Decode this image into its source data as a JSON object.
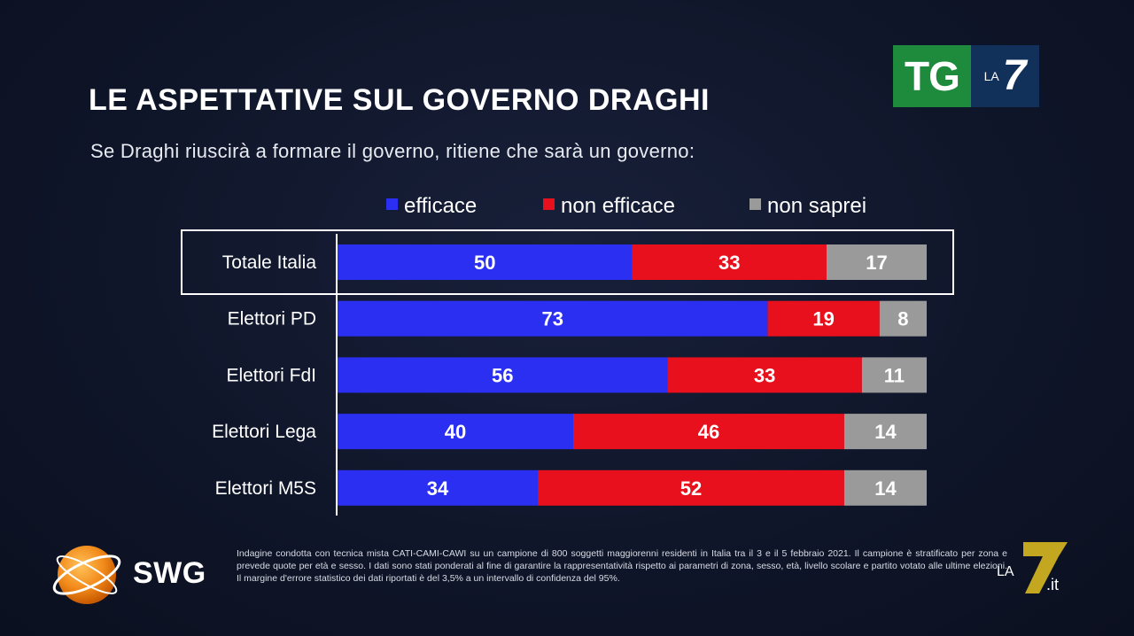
{
  "header": {
    "title": "LE ASPETTATIVE SUL GOVERNO DRAGHI",
    "subtitle": "Se Draghi riuscirà a formare il governo, ritiene che sarà un governo:"
  },
  "broadcaster_logo": {
    "tg": "TG",
    "la": "LA",
    "seven": "7"
  },
  "chart_data": {
    "type": "bar",
    "orientation": "horizontal",
    "stacked": true,
    "categories": [
      "Totale Italia",
      "Elettori PD",
      "Elettori FdI",
      "Elettori Lega",
      "Elettori M5S"
    ],
    "series": [
      {
        "name": "efficace",
        "color": "#2b2ff2",
        "values": [
          50,
          73,
          56,
          40,
          34
        ]
      },
      {
        "name": "non efficace",
        "color": "#e8101c",
        "values": [
          33,
          19,
          33,
          46,
          52
        ]
      },
      {
        "name": "non saprei",
        "color": "#9a9a9a",
        "values": [
          17,
          8,
          11,
          14,
          14
        ]
      }
    ],
    "xlim": [
      0,
      100
    ],
    "highlighted_category": "Totale Italia",
    "legend_position": "top"
  },
  "source": {
    "logo_text": "SWG",
    "footnote": "Indagine condotta con tecnica mista CATI-CAMI-CAWI su un campione di 800 soggetti maggiorenni residenti in Italia tra il 3 e il 5 febbraio 2021. Il campione è stratificato per zona e prevede quote per età e sesso. I dati sono stati ponderati al fine di garantire la rappresentatività rispetto ai parametri di zona, sesso, età, livello scolare e partito votato alle ultime elezioni. Il margine d'errore statistico dei dati riportati è del 3,5% a un intervallo di confidenza del 95%."
  },
  "watermark": {
    "la": "LA",
    "seven": "7",
    "it": ".it"
  }
}
